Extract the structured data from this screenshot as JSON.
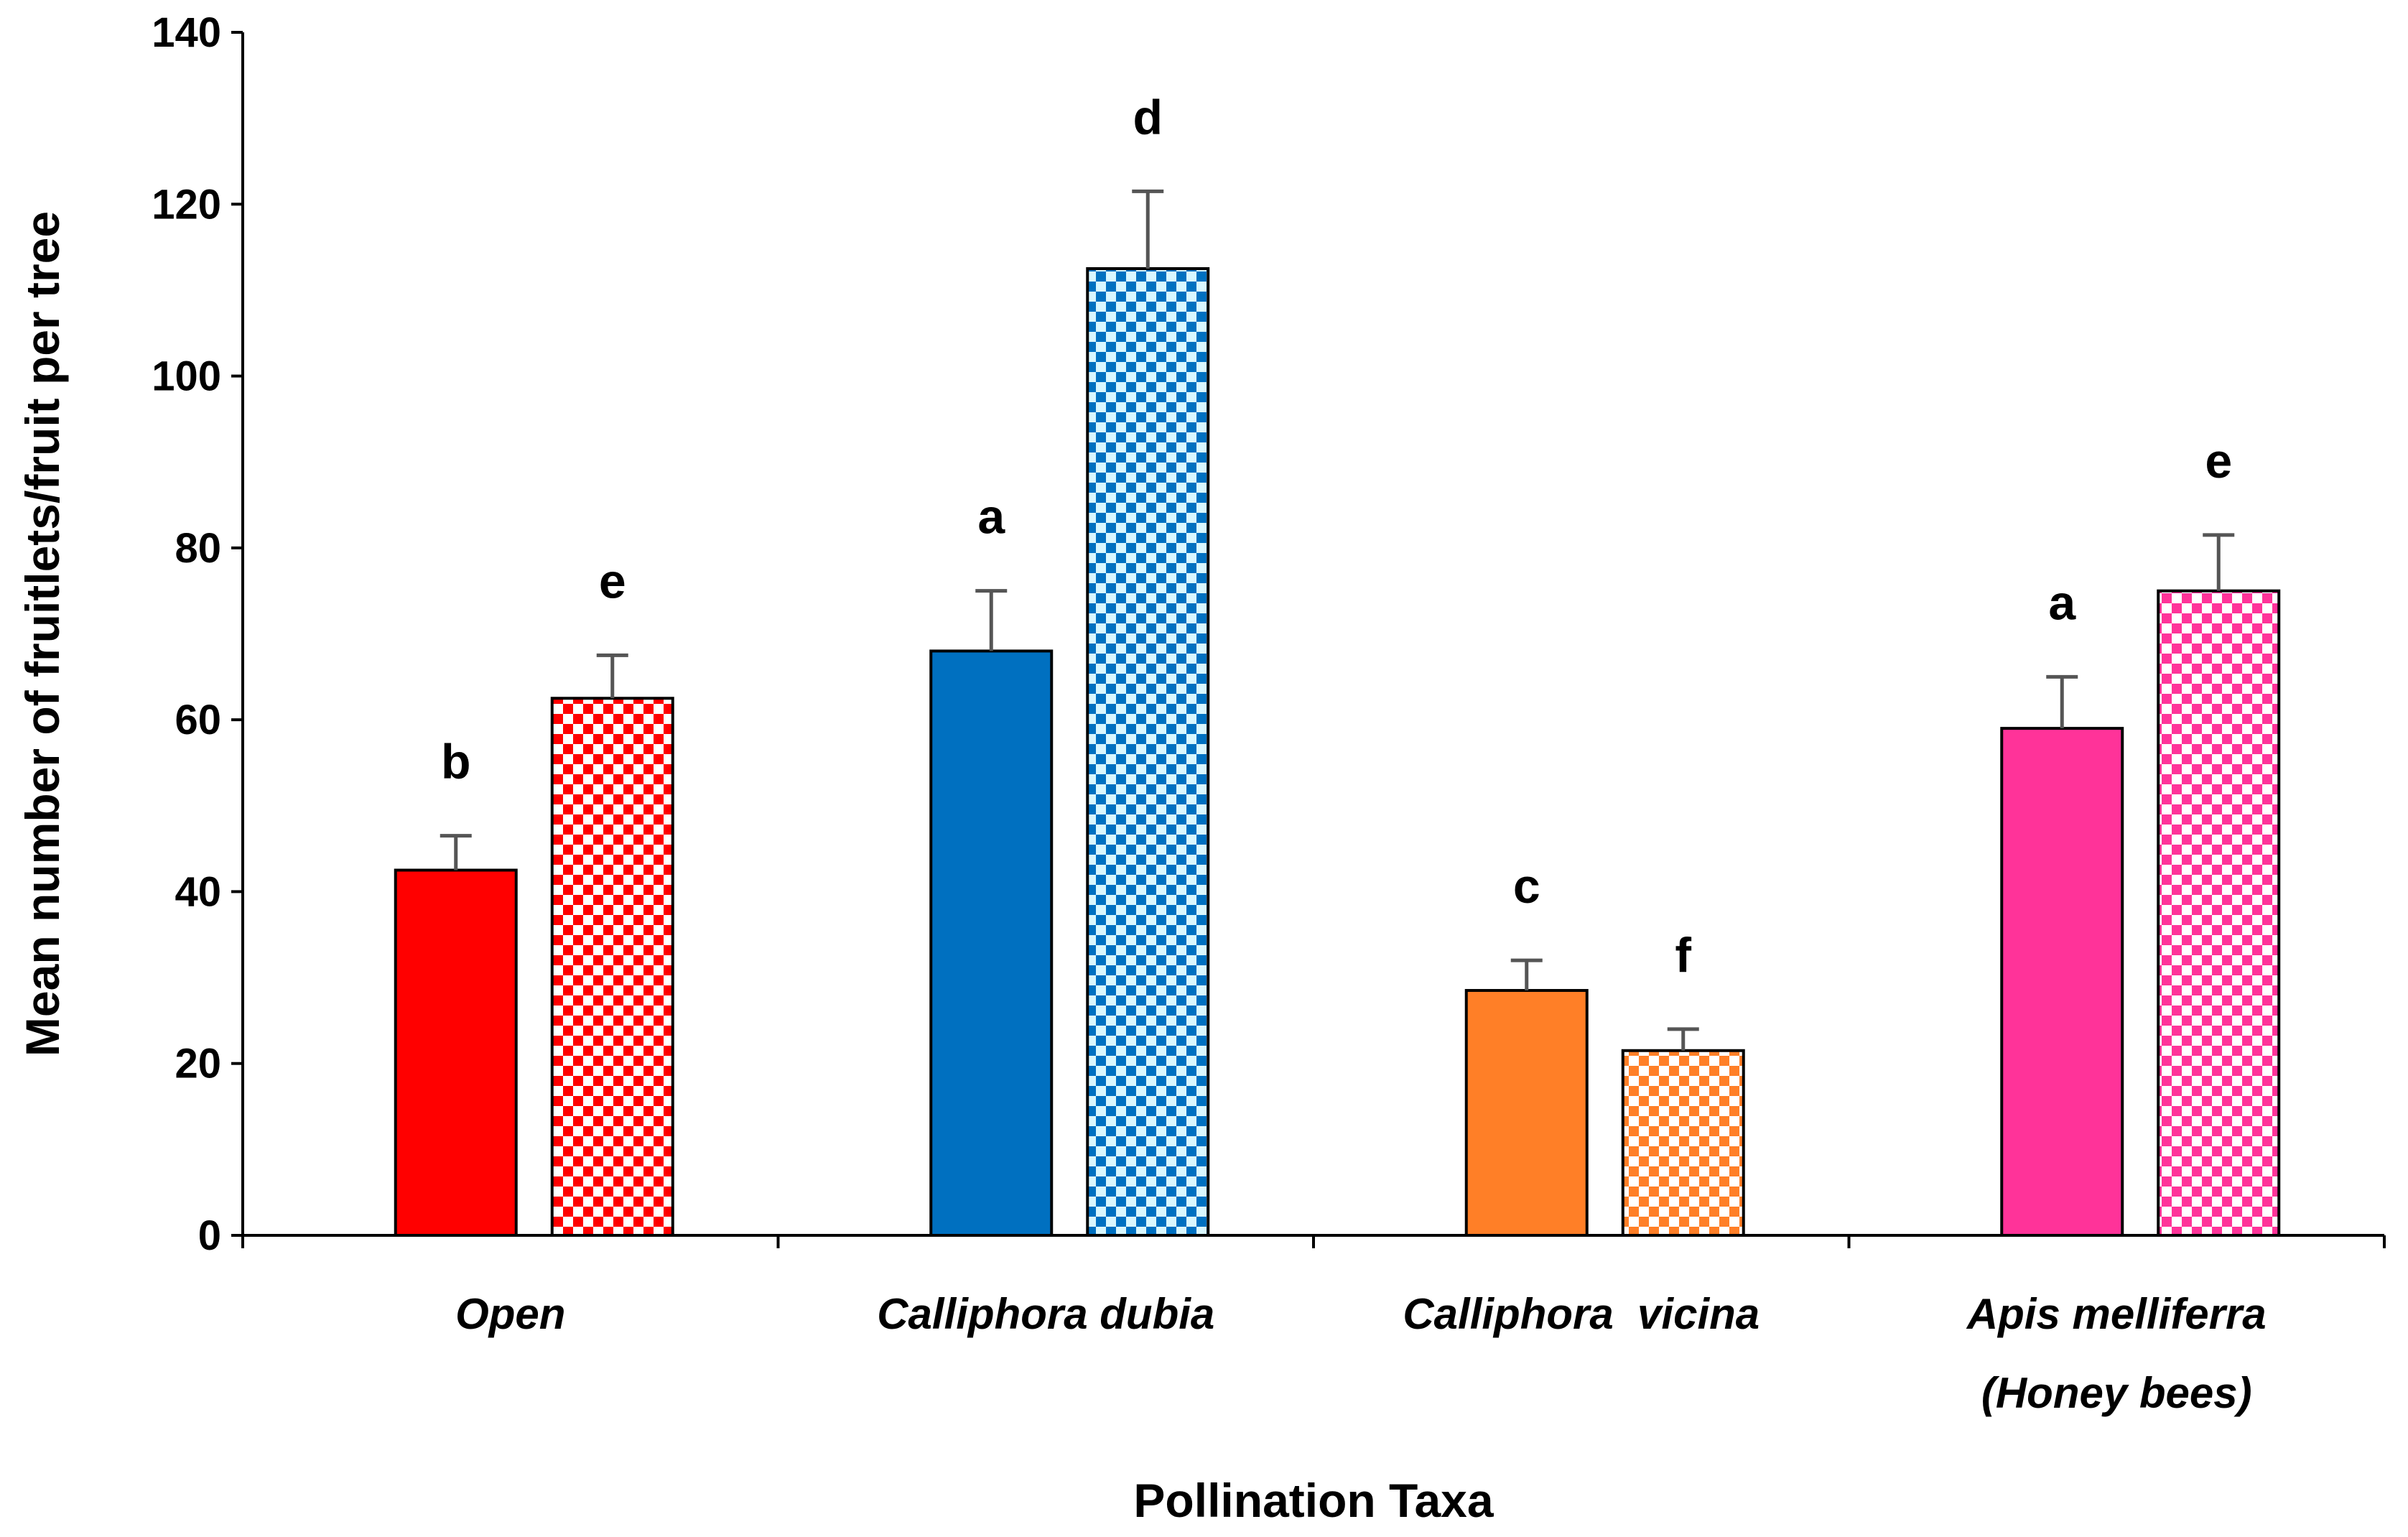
{
  "chart_data": {
    "type": "bar",
    "title": "",
    "xlabel": "Pollination Taxa",
    "ylabel": "Mean number of fruitlets/fruit per tree",
    "ylim": [
      0,
      140
    ],
    "yticks": [
      0,
      20,
      40,
      60,
      80,
      100,
      120,
      140
    ],
    "grid": false,
    "legend": "none",
    "categories": [
      {
        "lines": [
          "Open"
        ]
      },
      {
        "lines": [
          "Calliphora dubia"
        ]
      },
      {
        "lines": [
          "Calliphora  vicina"
        ]
      },
      {
        "lines": [
          "Apis melliferra",
          "(Honey bees)"
        ]
      }
    ],
    "series": [
      {
        "pattern": "solid",
        "values": [
          42.5,
          68,
          28.5,
          59
        ],
        "errors": [
          4,
          7,
          3.5,
          6
        ],
        "letters": [
          "b",
          "a",
          "c",
          "a"
        ]
      },
      {
        "pattern": "checkered",
        "values": [
          62.5,
          112.5,
          21.5,
          75
        ],
        "errors": [
          5,
          9,
          2.5,
          6.5
        ],
        "letters": [
          "e",
          "d",
          "f",
          "e"
        ]
      }
    ],
    "colors": {
      "solid": [
        "#ff0000",
        "#0070c0",
        "#ff7f27",
        "#ff3399"
      ],
      "checkered": [
        "#ff0000",
        "#0070c0",
        "#ff7f27",
        "#ff3399"
      ],
      "checkered_light": "#ffffff",
      "checkered_light_blue": "#d9f7ff",
      "axis": "#000000",
      "error_bar": "#555555"
    }
  }
}
